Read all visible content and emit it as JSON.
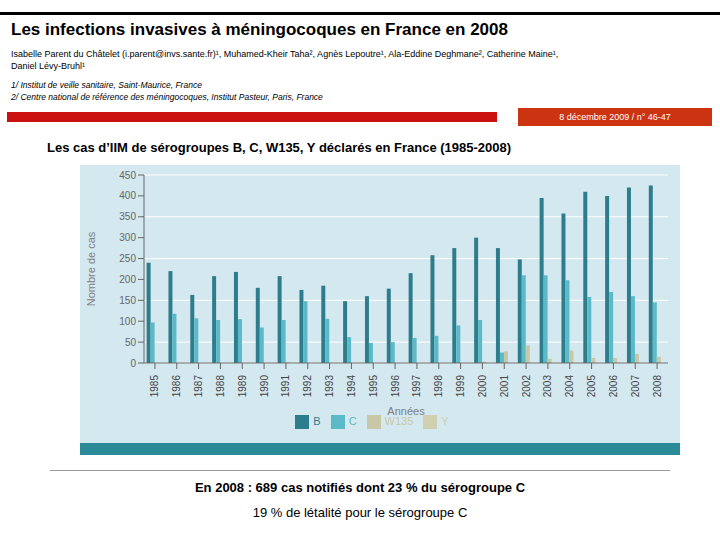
{
  "chart_data": {
    "type": "bar",
    "title": "Les cas d’IIM de sérogroupes B, C, W135, Y déclarés en France (1985-2008)",
    "xlabel": "Années",
    "ylabel": "Nombre de cas",
    "categories": [
      "1985",
      "1986",
      "1987",
      "1988",
      "1989",
      "1990",
      "1991",
      "1992",
      "1993",
      "1994",
      "1995",
      "1996",
      "1997",
      "1998",
      "1999",
      "2000",
      "2001",
      "2002",
      "2003",
      "2004",
      "2005",
      "2006",
      "2007",
      "2008"
    ],
    "series": [
      {
        "name": "B",
        "color": "#2E7D8C",
        "values": [
          240,
          220,
          163,
          208,
          218,
          180,
          208,
          175,
          185,
          148,
          160,
          178,
          215,
          258,
          275,
          300,
          275,
          248,
          395,
          358,
          410,
          400,
          420,
          425
        ]
      },
      {
        "name": "C",
        "color": "#5BBAC8",
        "values": [
          97,
          118,
          107,
          103,
          105,
          85,
          103,
          148,
          106,
          62,
          48,
          50,
          60,
          65,
          90,
          103,
          25,
          210,
          210,
          198,
          158,
          170,
          160,
          145
        ]
      },
      {
        "name": "W135",
        "color": "#C8C8A8",
        "values": [
          0,
          0,
          0,
          0,
          0,
          0,
          2,
          0,
          0,
          0,
          0,
          0,
          0,
          0,
          0,
          3,
          28,
          42,
          10,
          30,
          12,
          12,
          22,
          15
        ]
      },
      {
        "name": "Y",
        "color": "#D0D0B0",
        "values": [
          0,
          0,
          0,
          0,
          0,
          0,
          0,
          0,
          0,
          0,
          0,
          0,
          0,
          0,
          0,
          0,
          0,
          0,
          0,
          0,
          0,
          0,
          0,
          0
        ]
      }
    ],
    "ylim": [
      0,
      450
    ],
    "yticks": [
      0,
      50,
      100,
      150,
      200,
      250,
      300,
      350,
      400,
      450
    ],
    "grid": true,
    "legend": "bottom",
    "annotations": [
      "Les infections invasives à méningocoques en France en 2008",
      "Isabelle Parent du Châtelet (i.parent@invs.sante.fr)¹, Muhamed-Kheir Taha², Agnès Lepoutre¹, Ala-Eddine Deghmane², Catherine Maine¹,\nDaniel Lévy-Bruhl¹",
      "1/ Institut de veille sanitaire, Saint-Maurice, France",
      "2/ Centre national de référence des méningocoques, Institut Pasteur, Paris, France",
      "8 décembre 2009 / n° 46-47",
      "En 2008 : 689 cas notifiés dont 23 % du sérogroupe C",
      "19 % de létalité pour le sérogroupe C"
    ]
  }
}
